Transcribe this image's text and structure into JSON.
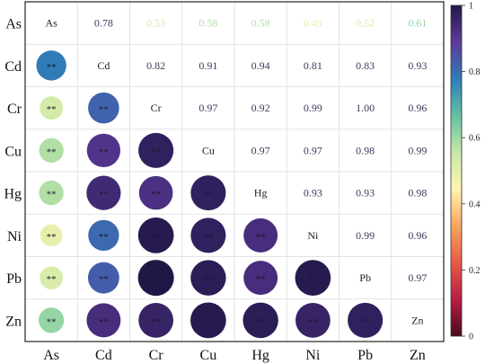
{
  "chart_data": {
    "type": "heatmap",
    "variables": [
      "As",
      "Cd",
      "Cr",
      "Cu",
      "Hg",
      "Ni",
      "Pb",
      "Zn"
    ],
    "matrix": [
      [
        1.0,
        0.78,
        0.53,
        0.58,
        0.58,
        0.49,
        0.52,
        0.61
      ],
      [
        0.78,
        1.0,
        0.82,
        0.91,
        0.94,
        0.81,
        0.83,
        0.93
      ],
      [
        0.53,
        0.82,
        1.0,
        0.97,
        0.92,
        0.99,
        1.0,
        0.96
      ],
      [
        0.58,
        0.91,
        0.97,
        1.0,
        0.97,
        0.97,
        0.98,
        0.99
      ],
      [
        0.58,
        0.94,
        0.92,
        0.97,
        1.0,
        0.93,
        0.93,
        0.98
      ],
      [
        0.49,
        0.81,
        0.99,
        0.97,
        0.93,
        1.0,
        0.99,
        0.96
      ],
      [
        0.52,
        0.83,
        1.0,
        0.98,
        0.93,
        0.99,
        1.0,
        0.97
      ],
      [
        0.61,
        0.93,
        0.96,
        0.99,
        0.98,
        0.96,
        0.97,
        1.0
      ]
    ],
    "upper_triangle_labels": [
      [
        "0.78",
        "0.53",
        "0.58",
        "0.58",
        "0.49",
        "0.52",
        "0.61"
      ],
      [
        "0.82",
        "0.91",
        "0.94",
        "0.81",
        "0.83",
        "0.93"
      ],
      [
        "0.97",
        "0.92",
        "0.99",
        "1.00",
        "0.96"
      ],
      [
        "0.97",
        "0.97",
        "0.98",
        "0.99"
      ],
      [
        "0.93",
        "0.93",
        "0.98"
      ],
      [
        "0.99",
        "0.96"
      ],
      [
        "0.97"
      ]
    ],
    "significance_mark": "**",
    "lower_triangle": "circles",
    "upper_triangle": "numbers",
    "colorbar": {
      "range": [
        0,
        1
      ],
      "ticks": [
        "0",
        "0.2",
        "0.4",
        "0.6",
        "0.8",
        "1"
      ],
      "colormap": "spectral-magma",
      "stops": [
        "#4c0a1c",
        "#b81d45",
        "#e85a44",
        "#f7a65f",
        "#fff4b0",
        "#c7e8a6",
        "#63c0a4",
        "#2e7cb9",
        "#5d3a9b",
        "#211747"
      ]
    }
  }
}
